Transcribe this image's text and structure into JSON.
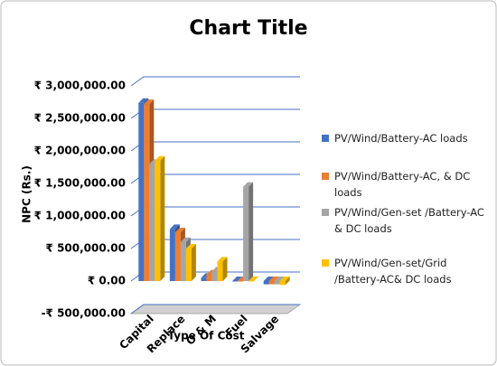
{
  "chart_data": {
    "type": "bar3d",
    "title": "Chart Title",
    "y_label": "NPC (Rs.)",
    "x_label": "Type Of Cost",
    "categories": [
      "Capital",
      "Replace",
      "O & M",
      "Fuel",
      "Salvage"
    ],
    "series": [
      {
        "name": "PV/Wind/Battery-AC loads",
        "color": "#4472c4",
        "values": [
          2740000,
          800000,
          50000,
          0,
          -50000
        ]
      },
      {
        "name": "PV/Wind/Battery-AC, & DC loads",
        "color": "#ed7d31",
        "values": [
          2720000,
          750000,
          100000,
          0,
          -50000
        ]
      },
      {
        "name": "PV/Wind/Gen-set /Battery-AC & DC loads",
        "color": "#a5a5a5",
        "values": [
          1800000,
          600000,
          150000,
          1450000,
          -50000
        ]
      },
      {
        "name": "PV/Wind/Gen-set/Grid /Battery-AC& DC loads",
        "color": "#ffc000",
        "values": [
          1850000,
          500000,
          300000,
          0,
          -60000
        ]
      }
    ],
    "ylim": [
      -500000,
      3000000
    ],
    "yticks": [
      {
        "value": -500000,
        "label": "-₹ 500,000.00"
      },
      {
        "value": 0,
        "label": "₹ 0.00"
      },
      {
        "value": 500000,
        "label": "₹ 500,000.00"
      },
      {
        "value": 1000000,
        "label": "₹ 1,000,000.00"
      },
      {
        "value": 1500000,
        "label": "₹ 1,500,000.00"
      },
      {
        "value": 2000000,
        "label": "₹ 2,000,000.00"
      },
      {
        "value": 2500000,
        "label": "₹ 2,500,000.00"
      },
      {
        "value": 3000000,
        "label": "₹ 3,000,000.00"
      }
    ],
    "grid": true
  }
}
